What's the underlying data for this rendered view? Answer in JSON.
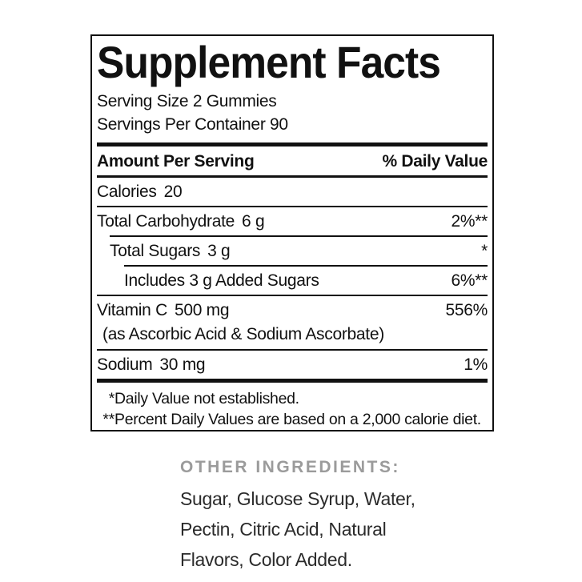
{
  "supplement_panel": {
    "title": "Supplement Facts",
    "serving_size": "Serving Size 2 Gummies",
    "servings_per_container": "Servings Per Container 90",
    "column_headers": {
      "left": "Amount Per Serving",
      "right": "% Daily Value"
    },
    "rows": [
      {
        "name": "Calories",
        "amount": "20",
        "daily_value": ""
      },
      {
        "name": "Total Carbohydrate",
        "amount": "6 g",
        "daily_value": "2%**"
      },
      {
        "name": "Total Sugars",
        "amount": "3 g",
        "daily_value": "*"
      },
      {
        "name": "Includes 3 g Added Sugars",
        "amount": "",
        "daily_value": "6%**"
      },
      {
        "name": "Vitamin C",
        "amount": "500 mg",
        "daily_value": "556%",
        "detail": "(as Ascorbic Acid & Sodium Ascorbate)"
      },
      {
        "name": "Sodium",
        "amount": "30 mg",
        "daily_value": "1%"
      }
    ],
    "footnotes": [
      {
        "marker": "*",
        "text": "Daily Value not established."
      },
      {
        "marker": "**",
        "text": "Percent Daily Values are based on a 2,000 calorie diet."
      }
    ]
  },
  "other_ingredients": {
    "heading": "OTHER INGREDIENTS:",
    "lines": [
      "Sugar, Glucose Syrup, Water,",
      "Pectin, Citric Acid, Natural",
      "Flavors, Color Added."
    ]
  },
  "colors": {
    "text": "#111111",
    "panel_border": "#111111",
    "rule_lines": "#111111",
    "other_ingredients_heading": "#9b9b9b",
    "other_ingredients_text": "#2b2b2b",
    "background": "#ffffff"
  }
}
